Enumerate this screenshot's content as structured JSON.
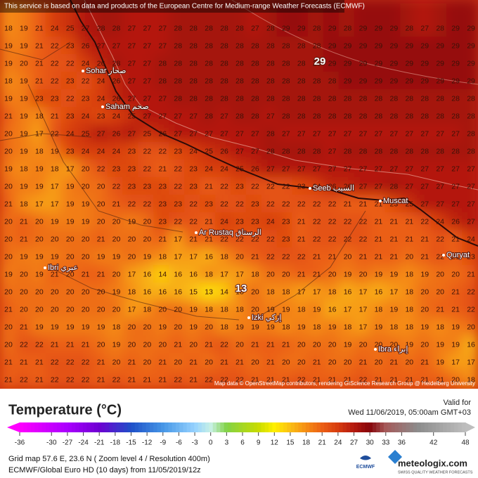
{
  "header": {
    "notice": "This service is based on data and products of the European Centre for Medium-range Weather Forecasts (ECMWF)"
  },
  "map": {
    "attribution": "Map data © OpenStreetMap contributors, rendering GIScience Research Group @ Heidelberg University",
    "grid": [
      [
        18,
        19,
        21,
        24,
        25,
        27,
        28,
        28,
        27,
        27,
        27,
        28,
        28,
        28,
        28,
        28,
        27,
        28,
        29,
        29,
        28,
        29,
        28,
        29,
        29,
        29,
        28,
        27,
        28,
        29,
        29
      ],
      [
        19,
        19,
        21,
        22,
        23,
        26,
        27,
        27,
        27,
        27,
        27,
        28,
        28,
        28,
        28,
        28,
        28,
        28,
        28,
        28,
        28,
        29,
        29,
        29,
        29,
        29,
        29,
        29,
        29,
        29,
        29
      ],
      [
        19,
        20,
        21,
        22,
        22,
        24,
        26,
        28,
        27,
        27,
        28,
        28,
        28,
        28,
        28,
        28,
        28,
        28,
        28,
        28,
        28,
        29,
        29,
        29,
        29,
        29,
        29,
        29,
        29,
        29,
        29
      ],
      [
        18,
        19,
        21,
        22,
        23,
        22,
        24,
        26,
        27,
        27,
        28,
        28,
        28,
        28,
        28,
        28,
        28,
        28,
        28,
        28,
        28,
        28,
        29,
        29,
        29,
        29,
        29,
        29,
        29,
        29,
        29
      ],
      [
        19,
        19,
        23,
        23,
        22,
        23,
        24,
        26,
        27,
        27,
        27,
        28,
        28,
        28,
        28,
        28,
        28,
        28,
        28,
        28,
        28,
        28,
        28,
        28,
        28,
        28,
        28,
        28,
        28,
        28,
        28
      ],
      [
        21,
        19,
        18,
        21,
        23,
        24,
        23,
        24,
        25,
        27,
        27,
        27,
        27,
        28,
        27,
        28,
        28,
        27,
        28,
        28,
        28,
        28,
        28,
        28,
        28,
        28,
        28,
        28,
        28,
        28,
        28
      ],
      [
        20,
        19,
        17,
        22,
        24,
        25,
        27,
        26,
        27,
        25,
        26,
        27,
        27,
        27,
        27,
        27,
        27,
        28,
        27,
        27,
        27,
        27,
        27,
        27,
        27,
        27,
        27,
        27,
        27,
        27,
        28
      ],
      [
        20,
        19,
        18,
        19,
        23,
        24,
        24,
        24,
        23,
        22,
        22,
        23,
        24,
        25,
        26,
        27,
        27,
        28,
        28,
        28,
        28,
        27,
        28,
        28,
        28,
        28,
        28,
        28,
        28,
        28,
        28
      ],
      [
        19,
        18,
        19,
        18,
        17,
        20,
        22,
        23,
        23,
        22,
        21,
        22,
        23,
        24,
        24,
        25,
        26,
        27,
        27,
        27,
        27,
        27,
        27,
        27,
        27,
        27,
        27,
        27,
        27,
        27,
        27
      ],
      [
        20,
        19,
        19,
        17,
        19,
        20,
        20,
        22,
        23,
        23,
        23,
        22,
        23,
        21,
        22,
        23,
        22,
        22,
        22,
        23,
        24,
        26,
        26,
        27,
        27,
        28,
        27,
        27,
        27,
        27,
        27
      ],
      [
        21,
        18,
        17,
        17,
        19,
        19,
        20,
        21,
        22,
        22,
        23,
        23,
        22,
        23,
        22,
        22,
        23,
        22,
        22,
        22,
        22,
        22,
        21,
        21,
        21,
        23,
        25,
        27,
        27,
        27,
        27
      ],
      [
        20,
        21,
        20,
        19,
        19,
        19,
        20,
        20,
        19,
        20,
        23,
        22,
        22,
        21,
        24,
        23,
        23,
        24,
        23,
        21,
        22,
        22,
        22,
        22,
        21,
        21,
        21,
        22,
        24,
        26,
        27
      ],
      [
        20,
        21,
        20,
        20,
        20,
        20,
        21,
        20,
        20,
        20,
        21,
        17,
        21,
        21,
        22,
        22,
        22,
        22,
        23,
        21,
        22,
        22,
        22,
        22,
        21,
        21,
        21,
        21,
        22,
        21,
        24
      ],
      [
        20,
        19,
        19,
        19,
        20,
        20,
        19,
        19,
        20,
        19,
        18,
        17,
        17,
        16,
        18,
        20,
        21,
        22,
        22,
        22,
        21,
        21,
        20,
        21,
        21,
        21,
        20,
        21,
        22,
        21,
        23
      ],
      [
        19,
        20,
        19,
        21,
        20,
        21,
        21,
        20,
        17,
        16,
        14,
        16,
        16,
        18,
        17,
        17,
        18,
        20,
        20,
        21,
        21,
        20,
        19,
        20,
        19,
        19,
        18,
        19,
        20,
        20,
        21
      ],
      [
        20,
        20,
        20,
        20,
        20,
        20,
        20,
        19,
        18,
        16,
        16,
        16,
        15,
        13,
        14,
        18,
        20,
        18,
        18,
        17,
        17,
        18,
        16,
        17,
        16,
        17,
        18,
        20,
        20,
        21,
        22
      ],
      [
        21,
        20,
        20,
        20,
        20,
        20,
        20,
        20,
        17,
        18,
        20,
        20,
        19,
        18,
        18,
        18,
        20,
        19,
        19,
        18,
        19,
        16,
        17,
        17,
        18,
        19,
        18,
        20,
        21,
        21,
        22
      ],
      [
        20,
        21,
        19,
        19,
        19,
        19,
        19,
        18,
        20,
        20,
        19,
        20,
        19,
        20,
        18,
        19,
        19,
        19,
        18,
        19,
        18,
        19,
        18,
        17,
        19,
        18,
        18,
        19,
        18,
        19,
        20
      ],
      [
        20,
        22,
        22,
        21,
        21,
        21,
        20,
        19,
        20,
        20,
        20,
        21,
        20,
        21,
        22,
        20,
        21,
        21,
        21,
        20,
        20,
        20,
        19,
        20,
        20,
        20,
        19,
        20,
        19,
        19,
        16
      ],
      [
        21,
        21,
        21,
        22,
        22,
        22,
        21,
        20,
        21,
        20,
        21,
        20,
        21,
        20,
        21,
        21,
        20,
        21,
        20,
        20,
        21,
        20,
        20,
        21,
        20,
        21,
        20,
        21,
        19,
        17,
        17
      ],
      [
        21,
        22,
        21,
        22,
        22,
        22,
        21,
        22,
        21,
        21,
        21,
        22,
        21,
        22,
        22,
        22,
        21,
        21,
        21,
        22,
        21,
        21,
        21,
        22,
        21,
        21,
        21,
        21,
        21,
        20,
        18
      ]
    ],
    "extremes": [
      {
        "value": 29
      },
      {
        "value": 13
      }
    ],
    "places": [
      "Sohar صحار",
      "Saham صحم",
      "Seeb السيب",
      "Muscat",
      "Ar Rustaq الرستاق",
      "Ibri عبري",
      "Izki إزكي",
      "Ibra إبراء",
      "Quryat"
    ]
  },
  "legend": {
    "title": "Temperature (°C)",
    "valid_label": "Valid for",
    "valid_time": "Wed 11/06/2019, 05:00am GMT+03",
    "ticks": [
      -36,
      -30,
      -27,
      -24,
      -21,
      -18,
      -15,
      -12,
      -9,
      -6,
      -3,
      0,
      3,
      6,
      9,
      12,
      15,
      18,
      21,
      24,
      27,
      30,
      33,
      36,
      42,
      48
    ]
  },
  "footer": {
    "grid_info": "Grid map 57.6 E, 23.6 N ( Zoom level 4 / Resolution 400m)",
    "model": "ECMWF/Global Euro HD (10 days) from 11/05/2019/12z",
    "ecmwf": "ECMWF",
    "brand": "meteologix.com",
    "slogan": "SWISS QUALITY WEATHER FORECASTS"
  }
}
